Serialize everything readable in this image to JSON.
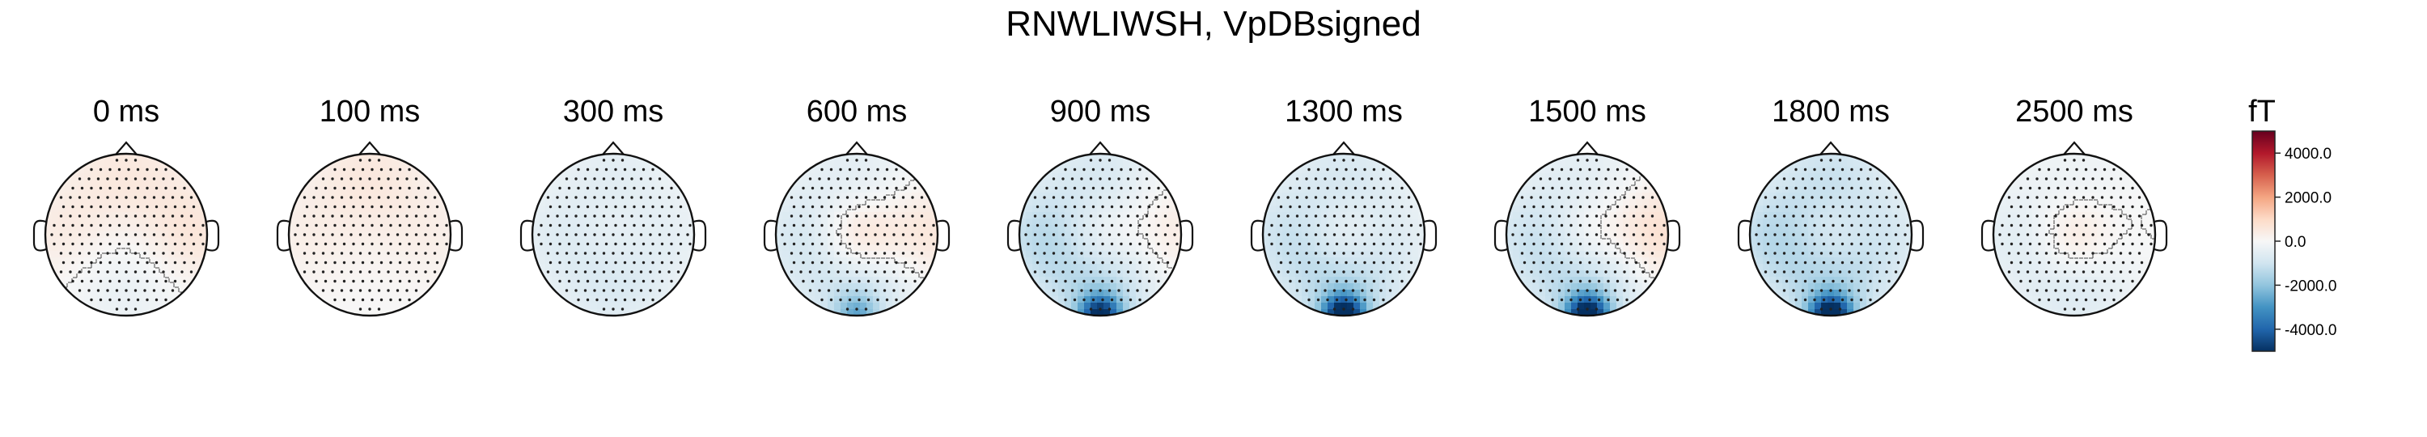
{
  "chart_data": {
    "type": "heatmap",
    "title": "RNWLIWSH, VpDBsigned",
    "subplots": [
      {
        "label": "0 ms",
        "front": 0.1,
        "back": -0.08,
        "left": 0.08,
        "right": 0.12,
        "center": 0.0,
        "blob": 0.0
      },
      {
        "label": "100 ms",
        "front": 0.1,
        "back": 0.0,
        "left": 0.05,
        "right": 0.05,
        "center": 0.0,
        "blob": 0.0
      },
      {
        "label": "300 ms",
        "front": -0.1,
        "back": -0.15,
        "left": -0.08,
        "right": -0.05,
        "center": 0.05,
        "blob": 0.0
      },
      {
        "label": "600 ms",
        "front": -0.1,
        "back": -0.25,
        "left": -0.12,
        "right": 0.15,
        "center": 0.25,
        "blob": -0.35
      },
      {
        "label": "900 ms",
        "front": -0.15,
        "back": -0.3,
        "left": -0.2,
        "right": 0.12,
        "center": 0.15,
        "blob": -0.85
      },
      {
        "label": "1300 ms",
        "front": -0.15,
        "back": -0.3,
        "left": -0.15,
        "right": -0.05,
        "center": 0.15,
        "blob": -1.0
      },
      {
        "label": "1500 ms",
        "front": -0.1,
        "back": -0.3,
        "left": -0.15,
        "right": 0.2,
        "center": 0.15,
        "blob": -1.0
      },
      {
        "label": "1800 ms",
        "front": -0.2,
        "back": -0.3,
        "left": -0.2,
        "right": -0.1,
        "center": 0.12,
        "blob": -1.0
      },
      {
        "label": "2500 ms",
        "front": -0.05,
        "back": -0.15,
        "left": -0.08,
        "right": 0.02,
        "center": 0.18,
        "blob": 0.0
      }
    ],
    "colorbar": {
      "label": "fT",
      "ticks": [
        "4000.0",
        "2000.0",
        "0.0",
        "-2000.0",
        "-4000.0"
      ],
      "tick_values": [
        4000,
        2000,
        0,
        -2000,
        -4000
      ],
      "range": [
        -5000,
        5000
      ],
      "colormap": "RdBu_r"
    }
  },
  "colors": {
    "outline": "#111111",
    "sensor": "#222222",
    "contour": "#444444"
  }
}
